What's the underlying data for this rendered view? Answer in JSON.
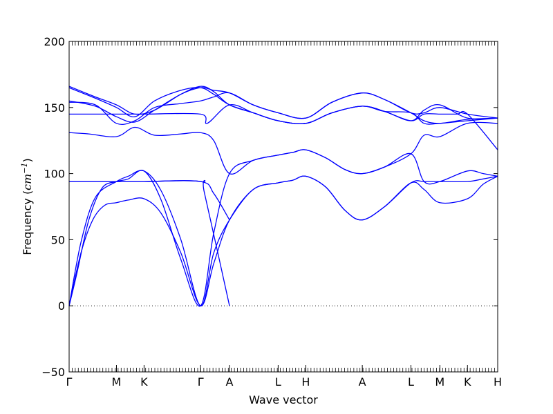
{
  "chart_data": {
    "type": "line",
    "title": "",
    "xlabel": "Wave vector",
    "ylabel": {
      "prefix": "Frequency (",
      "unit_base": "cm",
      "unit_exp": "−1",
      "suffix": ")"
    },
    "ylim": [
      -50,
      200
    ],
    "yticks": [
      -50,
      0,
      50,
      100,
      150,
      200
    ],
    "xlim": [
      0,
      3.26
    ],
    "kpoints": [
      {
        "label": "Γ",
        "x": 0.0
      },
      {
        "label": "M",
        "x": 0.36
      },
      {
        "label": "K",
        "x": 0.57
      },
      {
        "label": "Γ",
        "x": 1.0
      },
      {
        "label": "A",
        "x": 1.22
      },
      {
        "label": "L",
        "x": 1.59
      },
      {
        "label": "H",
        "x": 1.8
      },
      {
        "label": "A",
        "x": 2.23
      },
      {
        "label": "L",
        "x": 2.6
      },
      {
        "label": "M",
        "x": 2.82
      },
      {
        "label": "K",
        "x": 3.03
      },
      {
        "label": "H",
        "x": 3.26
      }
    ],
    "zero_line": 0,
    "line_color": "#0000ff",
    "series": [
      {
        "points": [
          [
            0,
            0
          ],
          [
            0.09,
            40
          ],
          [
            0.18,
            65
          ],
          [
            0.27,
            76
          ],
          [
            0.36,
            78
          ],
          [
            0.45,
            80
          ],
          [
            0.57,
            81
          ],
          [
            0.7,
            70
          ],
          [
            0.85,
            40
          ],
          [
            1.0,
            0
          ],
          [
            1.1,
            32
          ],
          [
            1.22,
            65
          ],
          [
            1.4,
            88
          ],
          [
            1.59,
            93
          ],
          [
            1.7,
            95
          ],
          [
            1.8,
            98
          ],
          [
            1.95,
            90
          ],
          [
            2.1,
            72
          ],
          [
            2.23,
            65
          ],
          [
            2.4,
            75
          ],
          [
            2.6,
            93
          ],
          [
            2.7,
            94
          ],
          [
            2.82,
            94
          ],
          [
            3.03,
            94
          ],
          [
            3.15,
            96
          ],
          [
            3.26,
            98
          ]
        ]
      },
      {
        "points": [
          [
            0,
            0
          ],
          [
            0.09,
            48
          ],
          [
            0.2,
            82
          ],
          [
            0.36,
            94
          ],
          [
            0.45,
            98
          ],
          [
            0.57,
            102
          ],
          [
            0.7,
            87
          ],
          [
            0.85,
            50
          ],
          [
            1.0,
            0
          ],
          [
            1.1,
            40
          ],
          [
            1.22,
            65
          ],
          [
            1.4,
            88
          ],
          [
            1.59,
            93
          ],
          [
            1.7,
            95
          ],
          [
            1.8,
            98
          ],
          [
            1.95,
            90
          ],
          [
            2.1,
            72
          ],
          [
            2.23,
            65
          ],
          [
            2.4,
            75
          ],
          [
            2.6,
            93
          ],
          [
            2.7,
            88
          ],
          [
            2.82,
            78
          ],
          [
            3.03,
            81
          ],
          [
            3.15,
            92
          ],
          [
            3.26,
            98
          ]
        ]
      },
      {
        "points": [
          [
            0,
            94
          ],
          [
            0.36,
            94
          ],
          [
            0.57,
            94
          ],
          [
            1.0,
            94
          ],
          [
            1.1,
            85
          ],
          [
            1.22,
            65
          ]
        ]
      },
      {
        "points": [
          [
            0,
            94
          ],
          [
            0.36,
            94
          ],
          [
            0.57,
            94
          ],
          [
            1.0,
            94
          ],
          [
            1.03,
            85
          ],
          [
            1.22,
            0
          ]
        ]
      },
      {
        "points": [
          [
            0,
            0
          ],
          [
            0.06,
            25
          ],
          [
            0.15,
            65
          ],
          [
            0.25,
            89
          ],
          [
            0.36,
            94
          ],
          [
            0.45,
            96
          ],
          [
            0.57,
            102
          ],
          [
            0.7,
            80
          ],
          [
            0.85,
            35
          ],
          [
            1.0,
            0
          ],
          [
            1.1,
            55
          ],
          [
            1.22,
            100
          ],
          [
            1.4,
            110
          ],
          [
            1.59,
            114
          ],
          [
            1.7,
            116
          ],
          [
            1.8,
            118
          ],
          [
            1.95,
            112
          ],
          [
            2.1,
            103
          ],
          [
            2.23,
            100
          ],
          [
            2.4,
            105
          ],
          [
            2.6,
            115
          ],
          [
            2.7,
            94
          ],
          [
            2.82,
            94
          ],
          [
            3.03,
            102
          ],
          [
            3.15,
            100
          ],
          [
            3.26,
            98
          ]
        ]
      },
      {
        "points": [
          [
            0,
            131
          ],
          [
            0.15,
            130
          ],
          [
            0.36,
            128
          ],
          [
            0.5,
            135
          ],
          [
            0.65,
            129
          ],
          [
            0.85,
            130
          ],
          [
            1.0,
            131
          ],
          [
            1.1,
            125
          ],
          [
            1.22,
            100
          ],
          [
            1.4,
            110
          ],
          [
            1.59,
            114
          ],
          [
            1.7,
            116
          ],
          [
            1.8,
            118
          ],
          [
            1.95,
            112
          ],
          [
            2.1,
            103
          ],
          [
            2.23,
            100
          ],
          [
            2.4,
            105
          ],
          [
            2.6,
            115
          ],
          [
            2.7,
            129
          ],
          [
            2.82,
            128
          ],
          [
            3.03,
            138
          ],
          [
            3.26,
            138
          ]
        ]
      },
      {
        "points": [
          [
            0,
            145
          ],
          [
            0.36,
            145
          ],
          [
            0.57,
            145
          ],
          [
            1.0,
            145
          ],
          [
            1.05,
            138
          ],
          [
            1.22,
            152
          ],
          [
            1.4,
            146
          ],
          [
            1.59,
            140
          ],
          [
            1.8,
            138
          ],
          [
            2.0,
            146
          ],
          [
            2.23,
            151
          ],
          [
            2.4,
            147
          ],
          [
            2.6,
            140
          ],
          [
            2.7,
            145
          ],
          [
            2.82,
            145
          ],
          [
            2.95,
            145
          ],
          [
            3.03,
            145
          ],
          [
            3.26,
            118
          ]
        ]
      },
      {
        "points": [
          [
            0,
            154
          ],
          [
            0.2,
            152
          ],
          [
            0.36,
            138
          ],
          [
            0.5,
            140
          ],
          [
            0.65,
            150
          ],
          [
            0.85,
            153
          ],
          [
            1.0,
            155
          ],
          [
            1.1,
            158
          ],
          [
            1.22,
            161
          ],
          [
            1.4,
            152
          ],
          [
            1.59,
            146
          ],
          [
            1.8,
            142
          ],
          [
            2.0,
            154
          ],
          [
            2.23,
            161
          ],
          [
            2.4,
            156
          ],
          [
            2.6,
            146
          ],
          [
            2.7,
            140
          ],
          [
            2.82,
            138
          ],
          [
            3.03,
            141
          ],
          [
            3.26,
            142
          ]
        ]
      },
      {
        "points": [
          [
            0,
            155
          ],
          [
            0.2,
            151
          ],
          [
            0.36,
            143
          ],
          [
            0.5,
            139
          ],
          [
            0.65,
            148
          ],
          [
            0.85,
            160
          ],
          [
            1.0,
            165
          ],
          [
            1.1,
            163
          ],
          [
            1.22,
            161
          ],
          [
            1.4,
            152
          ],
          [
            1.59,
            146
          ],
          [
            1.8,
            142
          ],
          [
            2.0,
            154
          ],
          [
            2.23,
            161
          ],
          [
            2.4,
            156
          ],
          [
            2.6,
            146
          ],
          [
            2.7,
            146
          ],
          [
            2.82,
            150
          ],
          [
            3.03,
            145
          ],
          [
            3.26,
            142
          ]
        ]
      },
      {
        "points": [
          [
            0,
            165
          ],
          [
            0.2,
            157
          ],
          [
            0.36,
            150
          ],
          [
            0.5,
            143
          ],
          [
            0.65,
            155
          ],
          [
            0.85,
            163
          ],
          [
            1.0,
            165
          ],
          [
            1.1,
            160
          ],
          [
            1.22,
            152
          ],
          [
            1.4,
            146
          ],
          [
            1.59,
            140
          ],
          [
            1.8,
            138
          ],
          [
            2.0,
            146
          ],
          [
            2.23,
            151
          ],
          [
            2.4,
            147
          ],
          [
            2.6,
            140
          ],
          [
            2.7,
            148
          ],
          [
            2.82,
            152
          ],
          [
            3.03,
            142
          ],
          [
            3.26,
            142
          ]
        ]
      },
      {
        "points": [
          [
            0,
            166
          ],
          [
            0.2,
            158
          ],
          [
            0.36,
            152
          ],
          [
            0.5,
            145
          ],
          [
            0.65,
            148
          ],
          [
            0.85,
            160
          ],
          [
            1.0,
            166
          ],
          [
            1.1,
            162
          ],
          [
            1.22,
            152
          ],
          [
            1.4,
            146
          ],
          [
            1.59,
            140
          ],
          [
            1.8,
            138
          ],
          [
            2.0,
            146
          ],
          [
            2.23,
            151
          ],
          [
            2.4,
            147
          ],
          [
            2.6,
            146
          ],
          [
            2.7,
            138
          ],
          [
            2.82,
            138
          ],
          [
            3.03,
            140
          ],
          [
            3.26,
            142
          ]
        ]
      }
    ]
  }
}
